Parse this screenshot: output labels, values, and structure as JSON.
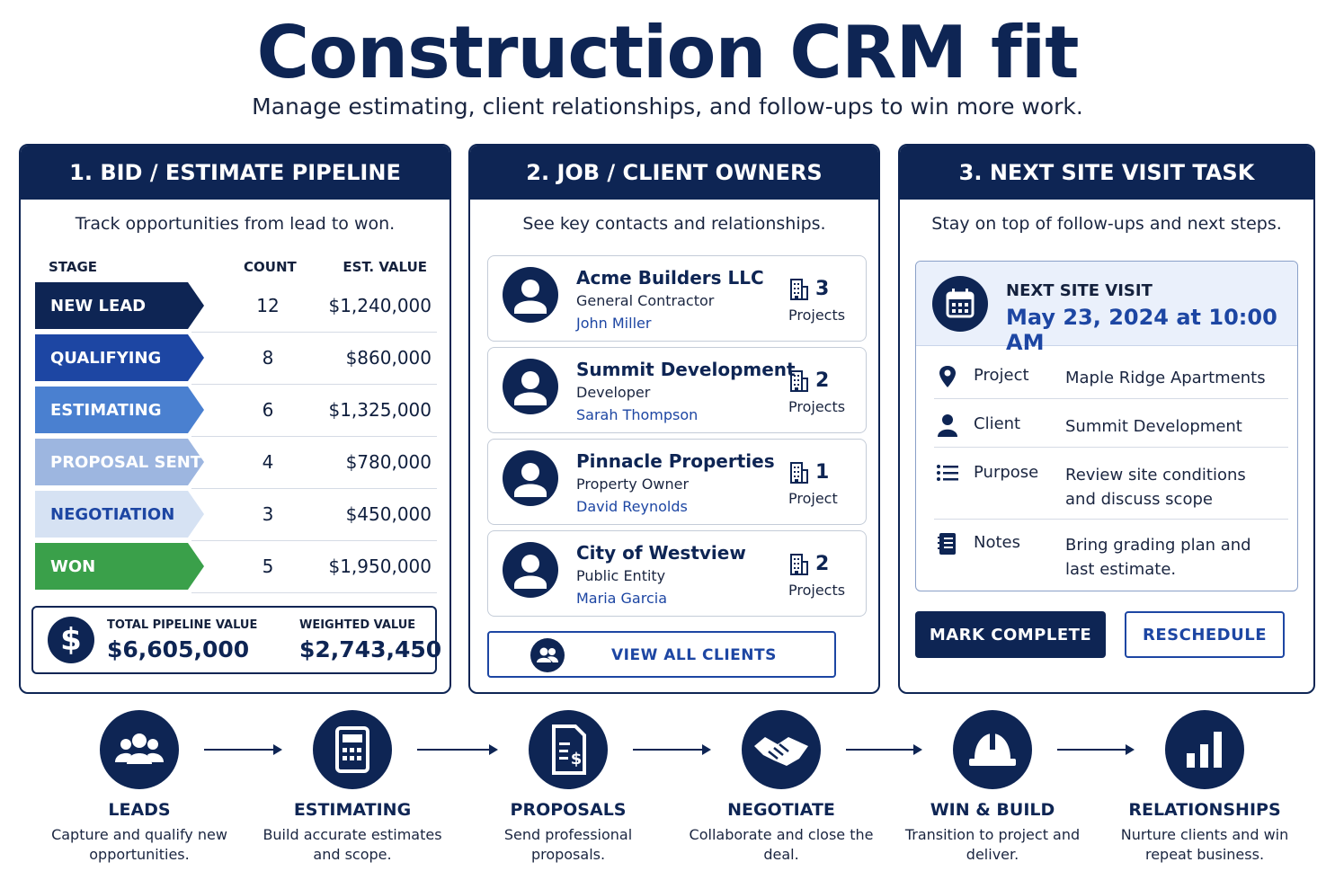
{
  "header": {
    "title": "Construction CRM fit",
    "subtitle": "Manage estimating, client relationships, and follow-ups to win more work."
  },
  "pipeline": {
    "heading": "1. BID / ESTIMATE PIPELINE",
    "description": "Track opportunities from lead to won.",
    "columns": {
      "stage": "STAGE",
      "count": "COUNT",
      "value": "EST. VALUE"
    },
    "rows": [
      {
        "stage": "NEW LEAD",
        "count": "12",
        "value": "$1,240,000",
        "color": "#0e2554",
        "text_color": "#ffffff"
      },
      {
        "stage": "QUALIFYING",
        "count": "8",
        "value": "$860,000",
        "color": "#1d46a3",
        "text_color": "#ffffff"
      },
      {
        "stage": "ESTIMATING",
        "count": "6",
        "value": "$1,325,000",
        "color": "#4a80d0",
        "text_color": "#ffffff"
      },
      {
        "stage": "PROPOSAL SENT",
        "count": "4",
        "value": "$780,000",
        "color": "#9db6e0",
        "text_color": "#ffffff"
      },
      {
        "stage": "NEGOTIATION",
        "count": "3",
        "value": "$450,000",
        "color": "#d6e2f3",
        "text_color": "#1d46a3"
      },
      {
        "stage": "WON",
        "count": "5",
        "value": "$1,950,000",
        "color": "#3aa04a",
        "text_color": "#ffffff"
      }
    ],
    "totals": {
      "total_label": "TOTAL PIPELINE VALUE",
      "total_value": "$6,605,000",
      "weighted_label": "WEIGHTED  VALUE",
      "weighted_value": "$2,743,450",
      "icon_glyph": "$"
    }
  },
  "clients": {
    "heading": "2. JOB / CLIENT OWNERS",
    "description": "See key contacts and relationships.",
    "items": [
      {
        "name": "Acme Builders LLC",
        "role": "General Contractor",
        "contact": "John Miller",
        "projects": "3",
        "projects_label": "Projects"
      },
      {
        "name": "Summit Development",
        "role": "Developer",
        "contact": "Sarah Thompson",
        "projects": "2",
        "projects_label": "Projects"
      },
      {
        "name": "Pinnacle Properties",
        "role": "Property Owner",
        "contact": "David Reynolds",
        "projects": "1",
        "projects_label": "Project"
      },
      {
        "name": "City of Westview",
        "role": "Public Entity",
        "contact": "Maria Garcia",
        "projects": "2",
        "projects_label": "Projects"
      }
    ],
    "view_all_label": "VIEW ALL CLIENTS"
  },
  "site_visit": {
    "heading": "3. NEXT SITE VISIT TASK",
    "description": "Stay on top of follow-ups and next steps.",
    "label": "NEXT SITE VISIT",
    "date": "May 23, 2024 at 10:00 AM",
    "details": [
      {
        "icon": "map-pin-icon",
        "key": "Project",
        "value": "Maple Ridge Apartments"
      },
      {
        "icon": "person-icon",
        "key": "Client",
        "value": "Summit Development"
      },
      {
        "icon": "list-icon",
        "key": "Purpose",
        "value": "Review site conditions and discuss scope"
      },
      {
        "icon": "notebook-icon",
        "key": "Notes",
        "value": "Bring grading plan and last estimate."
      }
    ],
    "mark_complete_label": "MARK COMPLETE",
    "reschedule_label": "RESCHEDULE"
  },
  "workflow": [
    {
      "icon": "people-group-icon",
      "title": "LEADS",
      "desc": "Capture and qualify new opportunities."
    },
    {
      "icon": "calculator-icon",
      "title": "ESTIMATING",
      "desc": "Build accurate estimates and scope."
    },
    {
      "icon": "document-dollar-icon",
      "title": "PROPOSALS",
      "desc": "Send professional proposals."
    },
    {
      "icon": "handshake-icon",
      "title": "NEGOTIATE",
      "desc": "Collaborate and close the deal."
    },
    {
      "icon": "hard-hat-icon",
      "title": "WIN & BUILD",
      "desc": "Transition to project and deliver."
    },
    {
      "icon": "bar-chart-icon",
      "title": "RELATIONSHIPS",
      "desc": "Nurture clients and win repeat business."
    }
  ]
}
